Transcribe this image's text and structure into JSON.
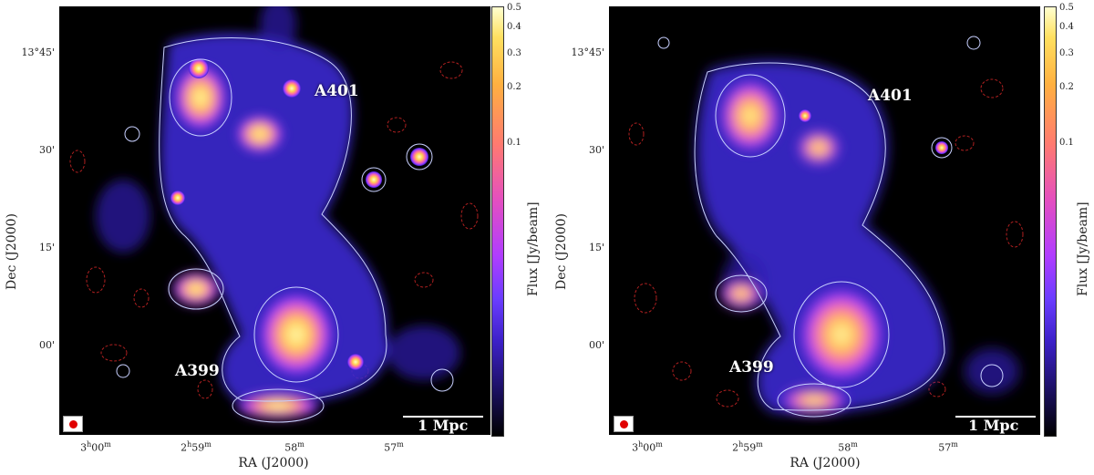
{
  "figure": {
    "panels": [
      {
        "id": "left",
        "y_axis_label": "Dec (J2000)",
        "x_axis_label": "RA (J2000)",
        "y_ticks": [
          "13°45'",
          "30'",
          "15'",
          "00'"
        ],
        "x_ticks": [
          {
            "h": "3",
            "hs": "h",
            "m": "00",
            "ms": "m"
          },
          {
            "h": "2",
            "hs": "h",
            "m": "59",
            "ms": "m"
          },
          {
            "h": "",
            "hs": "",
            "m": "58",
            "ms": "m"
          },
          {
            "h": "",
            "hs": "",
            "m": "57",
            "ms": "m"
          }
        ],
        "colorbar_label": "Flux [Jy/beam]",
        "colorbar_ticks": [
          "0.5",
          "0.4",
          "0.3",
          "0.2",
          "0.1"
        ],
        "cluster_labels": [
          "A401",
          "A399"
        ],
        "scale_bar_label": "1 Mpc"
      },
      {
        "id": "right",
        "y_axis_label": "Dec (J2000)",
        "x_axis_label": "RA (J2000)",
        "y_ticks": [
          "13°45'",
          "30'",
          "15'",
          "00'"
        ],
        "x_ticks": [
          {
            "h": "3",
            "hs": "h",
            "m": "00",
            "ms": "m"
          },
          {
            "h": "2",
            "hs": "h",
            "m": "59",
            "ms": "m"
          },
          {
            "h": "",
            "hs": "",
            "m": "58",
            "ms": "m"
          },
          {
            "h": "",
            "hs": "",
            "m": "57",
            "ms": "m"
          }
        ],
        "colorbar_label": "Flux [Jy/beam]",
        "colorbar_ticks": [
          "0.5",
          "0.4",
          "0.3",
          "0.2",
          "0.1"
        ],
        "cluster_labels": [
          "A401",
          "A399"
        ],
        "scale_bar_label": "1 Mpc"
      }
    ],
    "colormap": [
      "#000000",
      "#3c20c8",
      "#b03dff",
      "#ff7a70",
      "#ffe060",
      "#ffffd0"
    ],
    "contour_color": "#c8d0ff",
    "negative_contour_color": "#b02020"
  }
}
